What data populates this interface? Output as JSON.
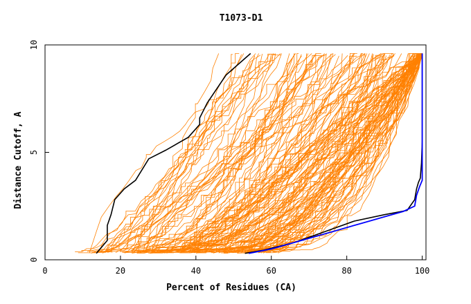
{
  "chart_data": {
    "type": "line",
    "title": "T1073-D1",
    "xlabel": "Percent of Residues (CA)",
    "ylabel": "Distance Cutoff, A",
    "xlim": [
      0,
      101
    ],
    "ylim": [
      0,
      10
    ],
    "x_ticks": [
      0,
      20,
      40,
      60,
      80,
      100
    ],
    "y_ticks": [
      0,
      5,
      10
    ],
    "grid": false,
    "legend": "none",
    "colors": {
      "models": "#ff8000",
      "highlight_black": "#000000",
      "highlight_blue": "#0000ff"
    },
    "series": [
      {
        "color": "#000000",
        "width": 1.6,
        "points": [
          [
            13.6,
            0.3
          ],
          [
            16.5,
            0.9
          ],
          [
            16.5,
            1.6
          ],
          [
            17.5,
            2.1
          ],
          [
            18.5,
            2.8
          ],
          [
            21,
            3.3
          ],
          [
            24,
            3.7
          ],
          [
            27.5,
            4.7
          ],
          [
            32,
            5.1
          ],
          [
            38,
            5.7
          ],
          [
            41,
            6.3
          ],
          [
            41,
            6.6
          ],
          [
            43,
            7.3
          ],
          [
            48,
            8.6
          ],
          [
            54.5,
            9.6
          ]
        ]
      },
      {
        "color": "#000000",
        "width": 1.6,
        "points": [
          [
            53,
            0.3
          ],
          [
            58,
            0.45
          ],
          [
            66,
            0.8
          ],
          [
            74,
            1.3
          ],
          [
            82,
            1.8
          ],
          [
            90,
            2.1
          ],
          [
            96,
            2.3
          ],
          [
            98,
            2.8
          ],
          [
            98.5,
            3.3
          ],
          [
            99,
            3.6
          ],
          [
            99.5,
            3.8
          ],
          [
            99.8,
            4.5
          ],
          [
            100,
            5.5
          ],
          [
            100,
            9.6
          ]
        ]
      },
      {
        "color": "#0000ff",
        "width": 1.8,
        "points": [
          [
            54,
            0.3
          ],
          [
            60,
            0.5
          ],
          [
            68,
            0.9
          ],
          [
            76,
            1.3
          ],
          [
            84,
            1.7
          ],
          [
            90,
            2.0
          ],
          [
            95,
            2.25
          ],
          [
            98,
            2.5
          ],
          [
            98.5,
            3.0
          ],
          [
            99.3,
            3.4
          ],
          [
            100,
            3.7
          ],
          [
            100,
            4.5
          ],
          [
            100,
            6
          ],
          [
            100,
            9.6
          ]
        ]
      }
    ]
  }
}
